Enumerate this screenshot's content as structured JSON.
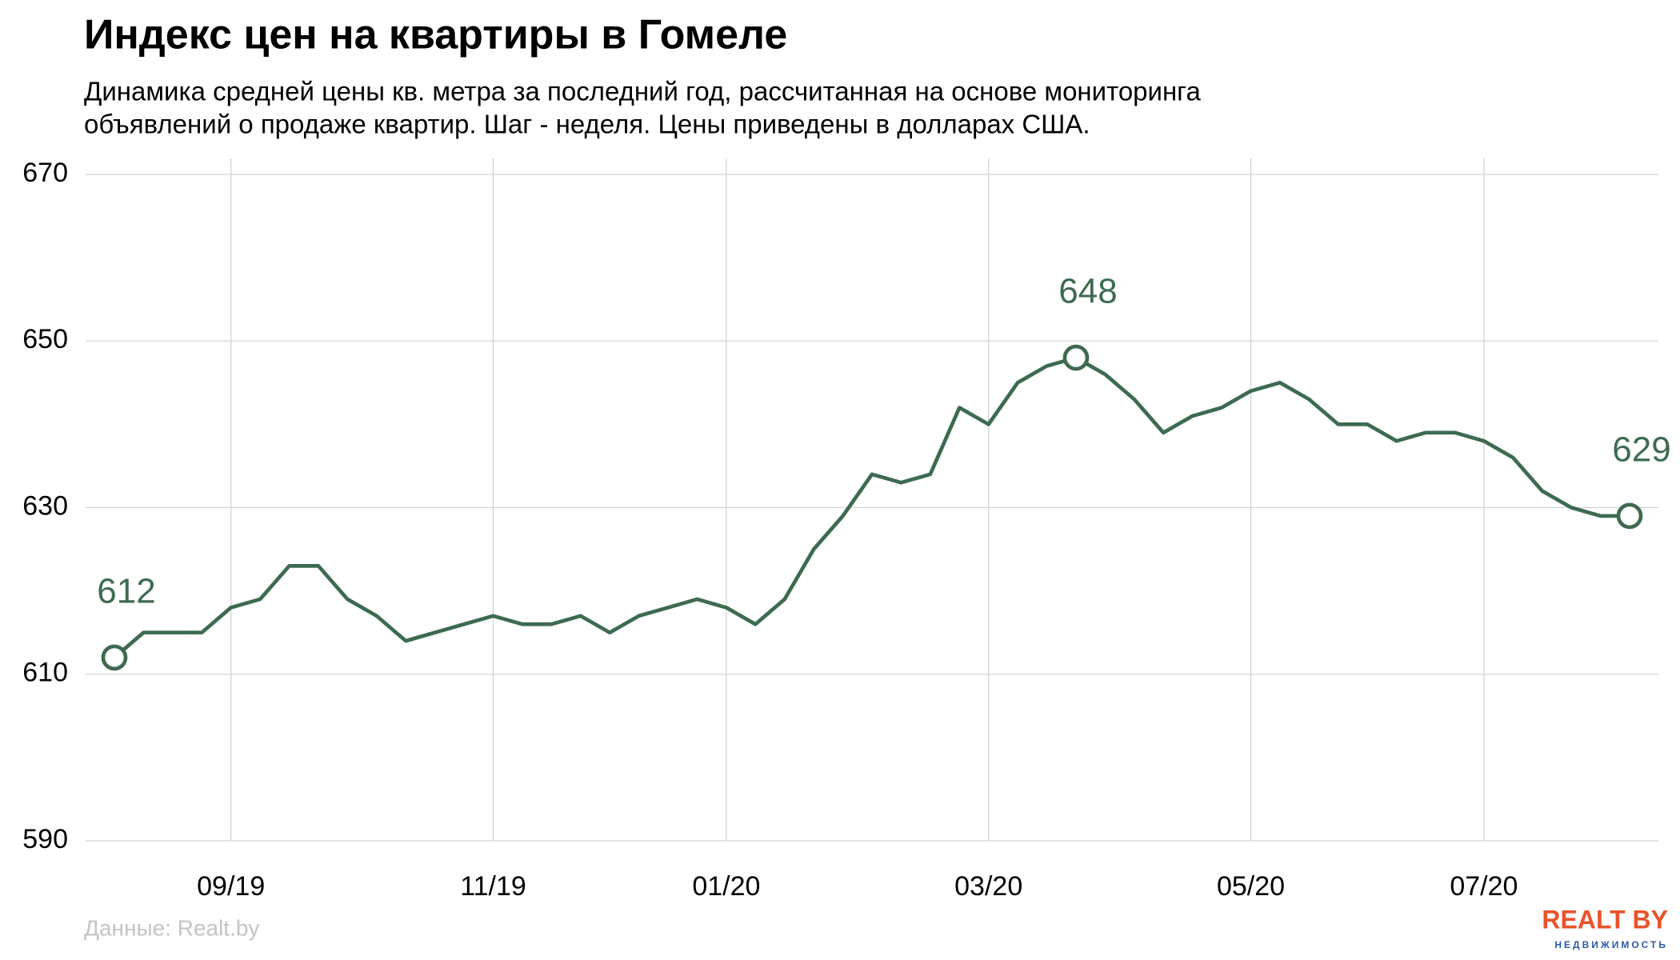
{
  "chart_data": {
    "type": "line",
    "title": "Индекс цен на квартиры в Гомеле",
    "subtitle": [
      "Динамика средней цены кв. метра за последний год, рассчитанная на основе мониторинга",
      "объявлений о продаже квартир. Шаг - неделя. Цены приведены в долларах США."
    ],
    "categories": [
      null,
      null,
      null,
      null,
      "09/19",
      null,
      null,
      null,
      null,
      null,
      null,
      null,
      null,
      "11/19",
      null,
      null,
      null,
      null,
      null,
      null,
      null,
      "01/20",
      null,
      null,
      null,
      null,
      null,
      null,
      null,
      null,
      "03/20",
      null,
      null,
      null,
      null,
      null,
      null,
      null,
      null,
      "05/20",
      null,
      null,
      null,
      null,
      null,
      null,
      null,
      "07/20",
      null,
      null,
      null,
      null,
      null
    ],
    "series": [
      {
        "name": "Индекс",
        "color": "#3d6b50",
        "values": [
          612,
          615,
          615,
          615,
          618,
          619,
          623,
          623,
          619,
          617,
          614,
          615,
          616,
          617,
          616,
          616,
          617,
          615,
          617,
          618,
          619,
          618,
          616,
          619,
          625,
          629,
          634,
          633,
          634,
          642,
          640,
          645,
          647,
          648,
          646,
          643,
          639,
          641,
          642,
          644,
          645,
          643,
          640,
          640,
          638,
          639,
          639,
          638,
          636,
          632,
          630,
          629,
          629
        ]
      }
    ],
    "labeled_points": [
      0,
      33,
      52
    ],
    "ylim": [
      590,
      670
    ],
    "yticks": [
      590,
      610,
      630,
      650,
      670
    ],
    "grid": true,
    "source": "Данные: Realt.by",
    "logo": {
      "name": "REALT BY",
      "tagline": "НЕДВИЖИМОСТЬ"
    }
  }
}
